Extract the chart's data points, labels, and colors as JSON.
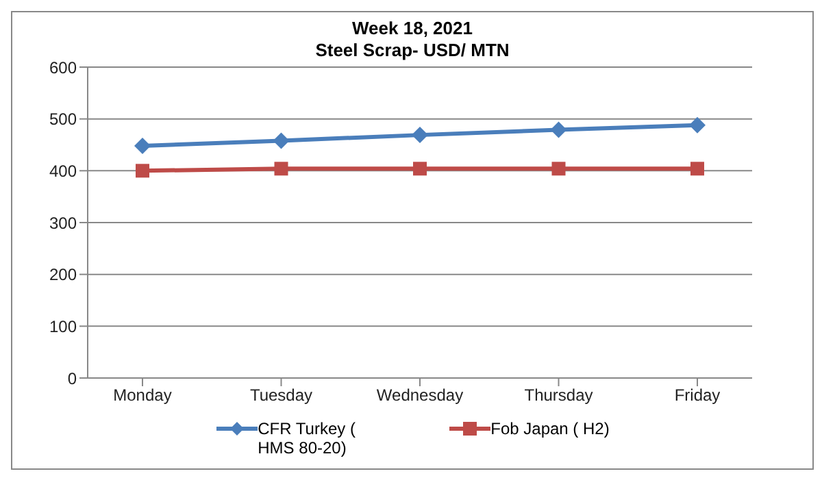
{
  "chart_data": {
    "type": "line",
    "title": "Week 18, 2021",
    "subtitle": "Steel Scrap- USD/ MTN",
    "categories": [
      "Monday",
      "Tuesday",
      "Wednesday",
      "Thursday",
      "Friday"
    ],
    "series": [
      {
        "name": "CFR Turkey ( HMS 80-20)",
        "color": "#4a7ebb",
        "marker": "diamond",
        "values": [
          448,
          458,
          469,
          479,
          488
        ]
      },
      {
        "name": "Fob Japan ( H2)",
        "color": "#be4b48",
        "marker": "square",
        "values": [
          400,
          404,
          404,
          404,
          404
        ]
      }
    ],
    "ylim": [
      0,
      600
    ],
    "yticks": [
      0,
      100,
      200,
      300,
      400,
      500,
      600
    ],
    "grid": "y",
    "legend": "bottom"
  }
}
